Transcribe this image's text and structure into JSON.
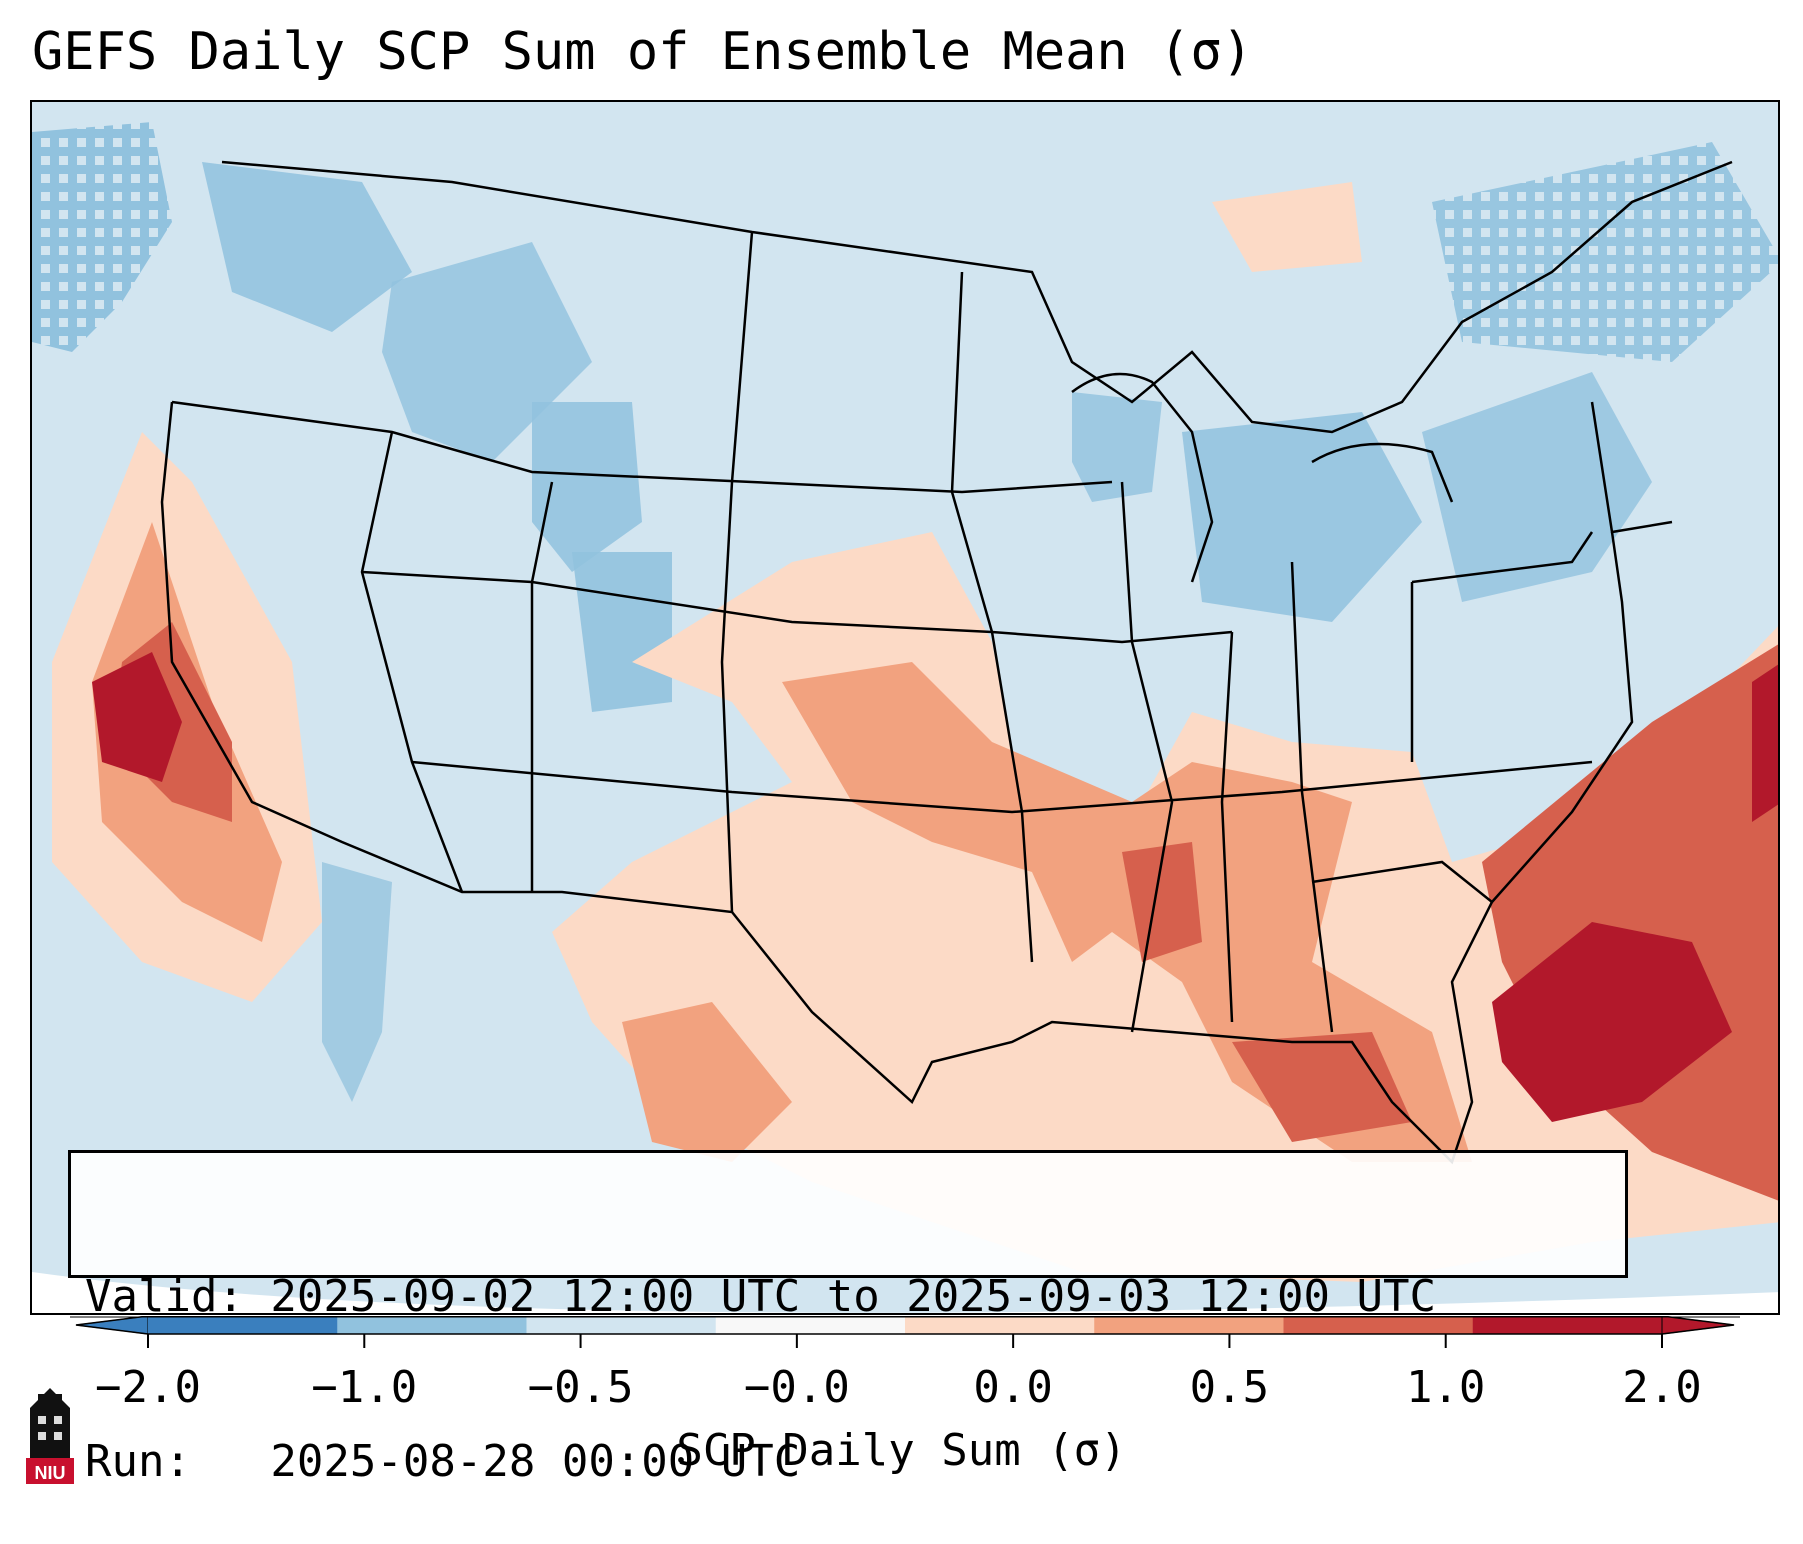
{
  "title": "GEFS Daily SCP Sum of Ensemble Mean (σ)",
  "info": {
    "valid": "Valid: 2025-09-02 12:00 UTC to 2025-09-03 12:00 UTC",
    "run": "Run:   2025-08-28 00:00 UTC"
  },
  "colorbar": {
    "label": "SCP Daily Sum (σ)",
    "ticks": [
      "−2.0",
      "−1.0",
      "−0.5",
      "−0.0",
      "0.0",
      "0.5",
      "1.0",
      "2.0"
    ],
    "colors": [
      "#3a7fbe",
      "#91c2de",
      "#d2e5f0",
      "#f8f8f8",
      "#fcdac6",
      "#f2a27f",
      "#d6604d",
      "#b2182b"
    ],
    "extend": "both"
  },
  "map": {
    "ocean_color": "#d2e5f0",
    "region": "Contiguous United States",
    "positive_anomaly_color": "#b2182b",
    "negative_anomaly_color": "#91c2de"
  },
  "logo": {
    "text": "NIU",
    "color": "#c8102e"
  }
}
